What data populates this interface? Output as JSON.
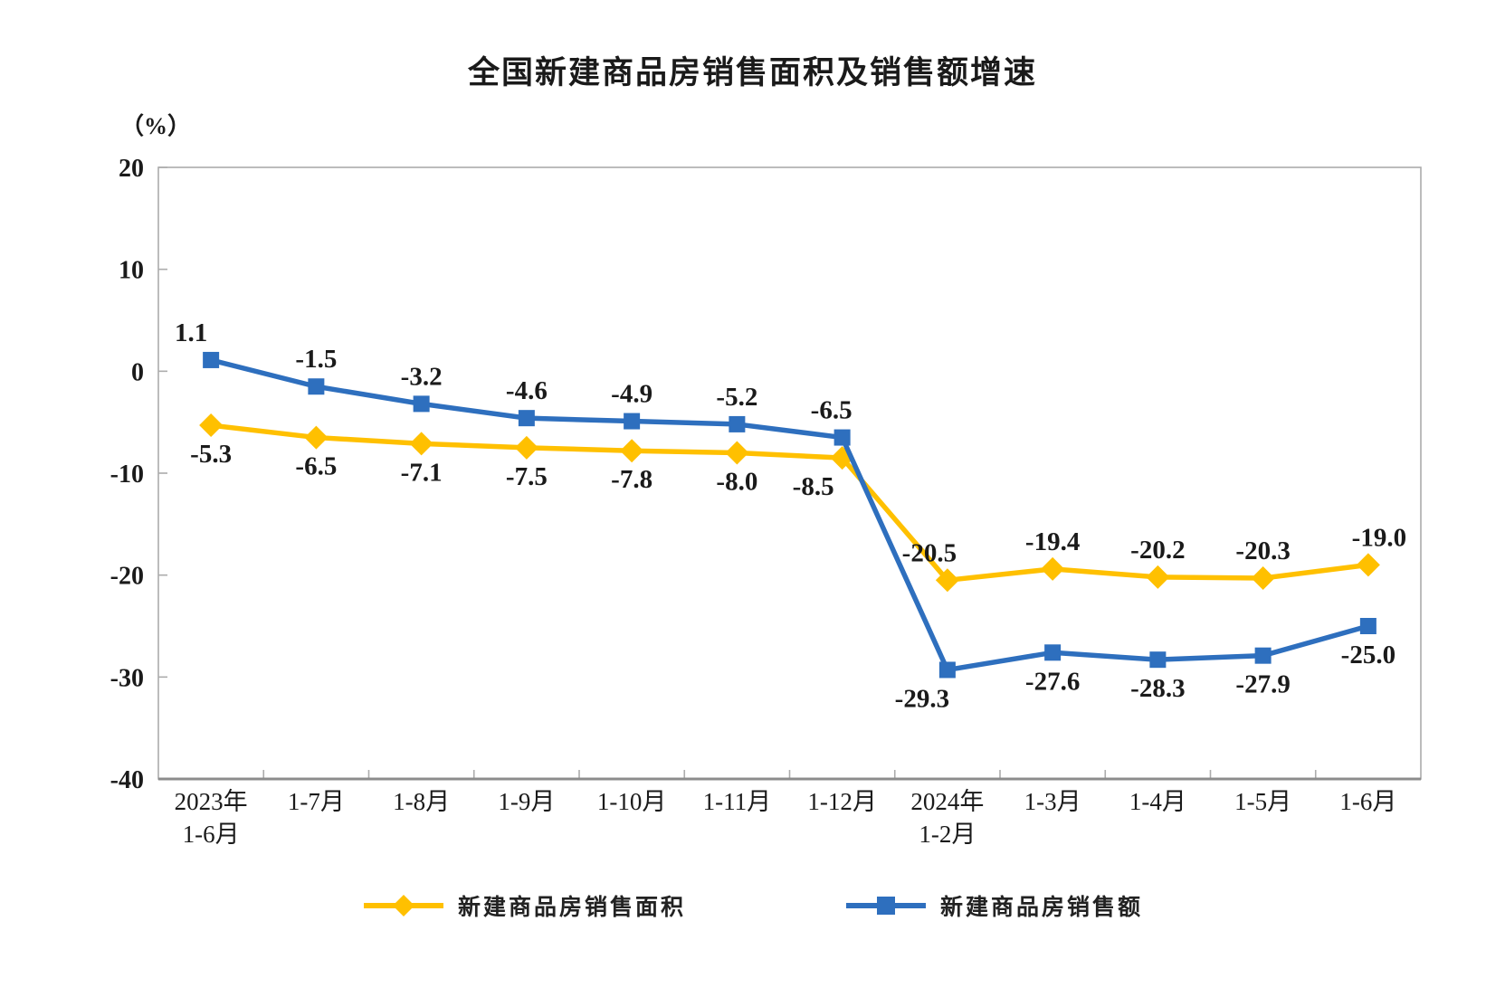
{
  "title": "全国新建商品房销售面积及销售额增速",
  "y_axis_unit": "（%）",
  "colors": {
    "series_area": "#FFC000",
    "series_value": "#2E6FBE",
    "plot_border": "#ACACAC",
    "axis_line": "#8C8C8C",
    "text": "#1A1A1A"
  },
  "chart_data": {
    "type": "line",
    "title": "全国新建商品房销售面积及销售额增速",
    "ylabel": "（%）",
    "ylim": [
      -40,
      20
    ],
    "yticks": [
      20,
      10,
      0,
      -10,
      -20,
      -30,
      -40
    ],
    "grid": false,
    "legend_position": "bottom",
    "categories": [
      [
        "2023年",
        "1-6月"
      ],
      [
        "1-7月"
      ],
      [
        "1-8月"
      ],
      [
        "1-9月"
      ],
      [
        "1-10月"
      ],
      [
        "1-11月"
      ],
      [
        "1-12月"
      ],
      [
        "2024年",
        "1-2月"
      ],
      [
        "1-3月"
      ],
      [
        "1-4月"
      ],
      [
        "1-5月"
      ],
      [
        "1-6月"
      ]
    ],
    "label_format": "1-decimal",
    "series": [
      {
        "name": "新建商品房销售面积",
        "color": "#FFC000",
        "marker": "diamond",
        "values": [
          -5.3,
          -6.5,
          -7.1,
          -7.5,
          -7.8,
          -8.0,
          -8.5,
          -20.5,
          -19.4,
          -20.2,
          -20.3,
          -19.0
        ],
        "label_side": [
          "below",
          "below",
          "below",
          "below",
          "below",
          "below",
          "below",
          "above",
          "above",
          "above",
          "above",
          "above"
        ],
        "label_dx": [
          0,
          0,
          0,
          0,
          0,
          0,
          -32,
          -20,
          0,
          0,
          0,
          12
        ]
      },
      {
        "name": "新建商品房销售额",
        "color": "#2E6FBE",
        "marker": "square",
        "values": [
          1.1,
          -1.5,
          -3.2,
          -4.6,
          -4.9,
          -5.2,
          -6.5,
          -29.3,
          -27.6,
          -28.3,
          -27.9,
          -25.0
        ],
        "label_side": [
          "above",
          "above",
          "above",
          "above",
          "above",
          "above",
          "above",
          "below",
          "below",
          "below",
          "below",
          "below"
        ],
        "label_dx": [
          -22,
          0,
          0,
          0,
          0,
          0,
          -12,
          -28,
          0,
          0,
          0,
          0
        ]
      }
    ]
  }
}
